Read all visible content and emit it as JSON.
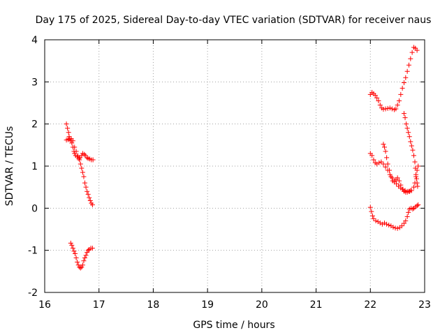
{
  "chart_data": {
    "type": "scatter",
    "title": "Day 175 of 2025, Sidereal Day-to-day VTEC variation (SDTVAR) for receiver naus",
    "xlabel": "GPS time / hours",
    "ylabel": "SDTVAR / TECUs",
    "xlim": [
      16,
      23
    ],
    "ylim": [
      -2,
      4
    ],
    "xticks": [
      "16",
      "17",
      "18",
      "19",
      "20",
      "21",
      "22",
      "23"
    ],
    "yticks": [
      "-2",
      "-1",
      "0",
      "1",
      "2",
      "3",
      "4"
    ],
    "grid": true,
    "marker": "plus",
    "color": "#ff0000",
    "series": [
      {
        "points": [
          [
            16.4,
            2.0
          ],
          [
            16.42,
            1.9
          ],
          [
            16.44,
            1.8
          ],
          [
            16.45,
            1.7
          ],
          [
            16.46,
            1.65
          ],
          [
            16.48,
            1.6
          ],
          [
            16.5,
            1.55
          ],
          [
            16.52,
            1.45
          ],
          [
            16.54,
            1.35
          ],
          [
            16.55,
            1.3
          ],
          [
            16.57,
            1.25
          ],
          [
            16.6,
            1.22
          ],
          [
            16.63,
            1.18
          ],
          [
            16.65,
            1.2
          ],
          [
            16.68,
            1.25
          ],
          [
            16.7,
            1.3
          ],
          [
            16.73,
            1.28
          ],
          [
            16.75,
            1.25
          ],
          [
            16.78,
            1.2
          ],
          [
            16.8,
            1.18
          ],
          [
            16.83,
            1.17
          ],
          [
            16.86,
            1.15
          ],
          [
            16.89,
            1.15
          ]
        ]
      },
      {
        "points": [
          [
            16.4,
            1.62
          ],
          [
            16.43,
            1.63
          ],
          [
            16.46,
            1.64
          ],
          [
            16.49,
            1.65
          ],
          [
            16.52,
            1.6
          ],
          [
            16.55,
            1.45
          ],
          [
            16.58,
            1.35
          ],
          [
            16.61,
            1.25
          ],
          [
            16.64,
            1.15
          ],
          [
            16.66,
            1.05
          ],
          [
            16.68,
            0.95
          ],
          [
            16.7,
            0.85
          ],
          [
            16.72,
            0.75
          ],
          [
            16.74,
            0.6
          ],
          [
            16.76,
            0.5
          ],
          [
            16.78,
            0.4
          ],
          [
            16.8,
            0.33
          ],
          [
            16.82,
            0.25
          ],
          [
            16.84,
            0.18
          ],
          [
            16.86,
            0.12
          ],
          [
            16.88,
            0.08
          ]
        ]
      },
      {
        "points": [
          [
            16.48,
            -0.83
          ],
          [
            16.5,
            -0.88
          ],
          [
            16.52,
            -0.95
          ],
          [
            16.54,
            -1.02
          ],
          [
            16.56,
            -1.08
          ],
          [
            16.58,
            -1.18
          ],
          [
            16.6,
            -1.28
          ],
          [
            16.62,
            -1.35
          ],
          [
            16.64,
            -1.4
          ],
          [
            16.66,
            -1.42
          ],
          [
            16.68,
            -1.4
          ],
          [
            16.7,
            -1.35
          ],
          [
            16.72,
            -1.25
          ],
          [
            16.74,
            -1.18
          ],
          [
            16.76,
            -1.12
          ],
          [
            16.78,
            -1.05
          ],
          [
            16.8,
            -1.0
          ],
          [
            16.82,
            -0.98
          ],
          [
            16.85,
            -0.95
          ],
          [
            16.88,
            -0.95
          ]
        ]
      },
      {
        "points": [
          [
            22.0,
            2.7
          ],
          [
            22.03,
            2.75
          ],
          [
            22.06,
            2.72
          ],
          [
            22.09,
            2.68
          ],
          [
            22.12,
            2.62
          ],
          [
            22.15,
            2.55
          ],
          [
            22.18,
            2.45
          ],
          [
            22.21,
            2.38
          ],
          [
            22.24,
            2.35
          ],
          [
            22.28,
            2.36
          ],
          [
            22.32,
            2.37
          ],
          [
            22.36,
            2.38
          ],
          [
            22.4,
            2.36
          ],
          [
            22.44,
            2.34
          ],
          [
            22.47,
            2.36
          ],
          [
            22.5,
            2.45
          ],
          [
            22.53,
            2.55
          ],
          [
            22.56,
            2.7
          ],
          [
            22.59,
            2.85
          ],
          [
            22.62,
            2.98
          ],
          [
            22.65,
            3.1
          ],
          [
            22.68,
            3.25
          ],
          [
            22.71,
            3.4
          ],
          [
            22.74,
            3.55
          ],
          [
            22.77,
            3.7
          ],
          [
            22.8,
            3.82
          ],
          [
            22.83,
            3.8
          ],
          [
            22.86,
            3.75
          ]
        ]
      },
      {
        "points": [
          [
            22.0,
            1.3
          ],
          [
            22.03,
            1.25
          ],
          [
            22.06,
            1.15
          ],
          [
            22.09,
            1.08
          ],
          [
            22.12,
            1.05
          ],
          [
            22.16,
            1.08
          ],
          [
            22.2,
            1.1
          ],
          [
            22.24,
            1.05
          ],
          [
            22.28,
            0.98
          ],
          [
            22.32,
            0.9
          ],
          [
            22.36,
            0.8
          ],
          [
            22.4,
            0.72
          ],
          [
            22.44,
            0.65
          ],
          [
            22.48,
            0.58
          ],
          [
            22.52,
            0.52
          ],
          [
            22.56,
            0.48
          ],
          [
            22.6,
            0.45
          ],
          [
            22.64,
            0.42
          ],
          [
            22.68,
            0.4
          ],
          [
            22.72,
            0.4
          ],
          [
            22.76,
            0.42
          ],
          [
            22.8,
            0.5
          ],
          [
            22.82,
            0.6
          ],
          [
            22.84,
            0.75
          ],
          [
            22.86,
            0.9
          ],
          [
            22.88,
            1.0
          ]
        ]
      },
      {
        "points": [
          [
            22.24,
            1.52
          ],
          [
            22.26,
            1.45
          ],
          [
            22.28,
            1.35
          ],
          [
            22.3,
            1.2
          ],
          [
            22.32,
            1.05
          ],
          [
            22.35,
            0.9
          ],
          [
            22.38,
            0.75
          ],
          [
            22.41,
            0.65
          ],
          [
            22.44,
            0.62
          ],
          [
            22.47,
            0.68
          ],
          [
            22.5,
            0.72
          ],
          [
            22.53,
            0.65
          ],
          [
            22.56,
            0.55
          ],
          [
            22.59,
            0.45
          ],
          [
            22.62,
            0.4
          ],
          [
            22.65,
            0.38
          ],
          [
            22.68,
            0.38
          ],
          [
            22.71,
            0.4
          ],
          [
            22.74,
            0.42
          ]
        ]
      },
      {
        "points": [
          [
            22.62,
            2.25
          ],
          [
            22.64,
            2.15
          ],
          [
            22.66,
            2.0
          ],
          [
            22.68,
            1.9
          ],
          [
            22.7,
            1.8
          ],
          [
            22.72,
            1.7
          ],
          [
            22.74,
            1.58
          ],
          [
            22.76,
            1.48
          ],
          [
            22.78,
            1.38
          ],
          [
            22.8,
            1.25
          ],
          [
            22.82,
            1.1
          ],
          [
            22.83,
            0.95
          ],
          [
            22.84,
            0.8
          ],
          [
            22.85,
            0.7
          ],
          [
            22.86,
            0.6
          ],
          [
            22.87,
            0.52
          ]
        ]
      },
      {
        "points": [
          [
            22.0,
            0.02
          ],
          [
            22.02,
            -0.08
          ],
          [
            22.04,
            -0.18
          ],
          [
            22.06,
            -0.25
          ],
          [
            22.1,
            -0.3
          ],
          [
            22.14,
            -0.32
          ],
          [
            22.18,
            -0.35
          ],
          [
            22.22,
            -0.38
          ],
          [
            22.26,
            -0.35
          ],
          [
            22.3,
            -0.38
          ],
          [
            22.34,
            -0.4
          ],
          [
            22.38,
            -0.42
          ],
          [
            22.42,
            -0.45
          ],
          [
            22.46,
            -0.47
          ],
          [
            22.5,
            -0.48
          ],
          [
            22.54,
            -0.46
          ],
          [
            22.58,
            -0.42
          ],
          [
            22.62,
            -0.36
          ],
          [
            22.65,
            -0.3
          ],
          [
            22.68,
            -0.2
          ],
          [
            22.7,
            -0.1
          ],
          [
            22.72,
            -0.02
          ],
          [
            22.75,
            0.0
          ],
          [
            22.78,
            -0.02
          ],
          [
            22.8,
            0.0
          ],
          [
            22.83,
            0.03
          ],
          [
            22.86,
            0.06
          ],
          [
            22.88,
            0.08
          ]
        ]
      }
    ]
  }
}
